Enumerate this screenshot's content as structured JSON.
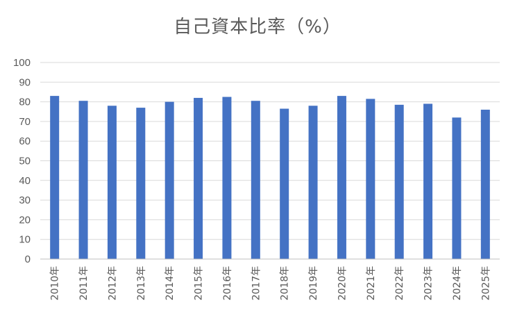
{
  "chart_data": {
    "type": "bar",
    "title": "自己資本比率（%）",
    "categories": [
      "2010年",
      "2011年",
      "2012年",
      "2013年",
      "2014年",
      "2015年",
      "2016年",
      "2017年",
      "2018年",
      "2019年",
      "2020年",
      "2021年",
      "2022年",
      "2023年",
      "2024年",
      "2025年"
    ],
    "values": [
      83,
      80.5,
      78,
      77,
      80,
      82,
      82.5,
      80.5,
      76.5,
      78,
      83,
      81.5,
      78.5,
      79,
      72,
      76
    ],
    "ylim": [
      0,
      100
    ],
    "yticks": [
      "0",
      "10",
      "20",
      "30",
      "40",
      "50",
      "60",
      "70",
      "80",
      "90",
      "100"
    ],
    "xlabel": "",
    "ylabel": "",
    "grid": true,
    "bar_color": "#4472C4",
    "grid_color": "#D9D9D9"
  }
}
